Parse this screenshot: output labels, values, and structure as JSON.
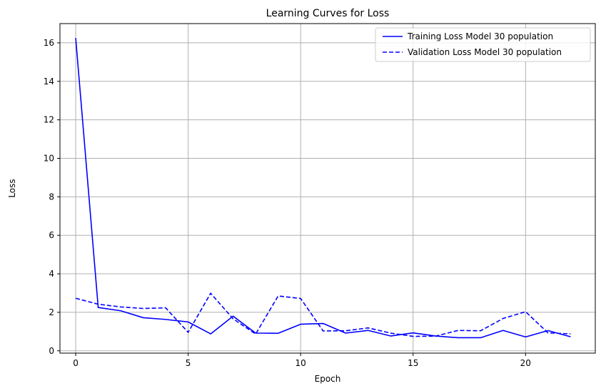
{
  "chart_data": {
    "type": "line",
    "title": "Learning Curves for Loss",
    "xlabel": "Epoch",
    "ylabel": "Loss",
    "xlim": [
      -0.7,
      23.1
    ],
    "ylim": [
      -0.12,
      17.0
    ],
    "xticks": [
      0,
      5,
      10,
      15,
      20
    ],
    "yticks": [
      0,
      2,
      4,
      6,
      8,
      10,
      12,
      14,
      16
    ],
    "grid": true,
    "legend_position": "top-right",
    "x": [
      0,
      1,
      2,
      3,
      4,
      5,
      6,
      7,
      8,
      9,
      10,
      11,
      12,
      13,
      14,
      15,
      16,
      17,
      18,
      19,
      20,
      21,
      22
    ],
    "series": [
      {
        "name": "Training Loss Model 30 population",
        "color": "#0000ff",
        "style": "solid",
        "values": [
          16.25,
          2.25,
          2.08,
          1.72,
          1.63,
          1.5,
          0.88,
          1.8,
          0.92,
          0.91,
          1.38,
          1.42,
          0.92,
          1.06,
          0.77,
          0.93,
          0.77,
          0.68,
          0.68,
          1.06,
          0.72,
          1.05,
          0.73
        ]
      },
      {
        "name": "Validation Loss Model 30 population",
        "color": "#0000ff",
        "style": "dashed",
        "values": [
          2.73,
          2.42,
          2.28,
          2.2,
          2.23,
          0.96,
          2.99,
          1.66,
          0.87,
          2.85,
          2.72,
          1.03,
          1.04,
          1.19,
          0.92,
          0.75,
          0.76,
          1.06,
          1.04,
          1.68,
          2.03,
          0.93,
          0.88
        ]
      }
    ],
    "colors": {
      "axes": "#000000",
      "grid": "#b0b0b0",
      "legend_border": "#cccccc"
    }
  }
}
